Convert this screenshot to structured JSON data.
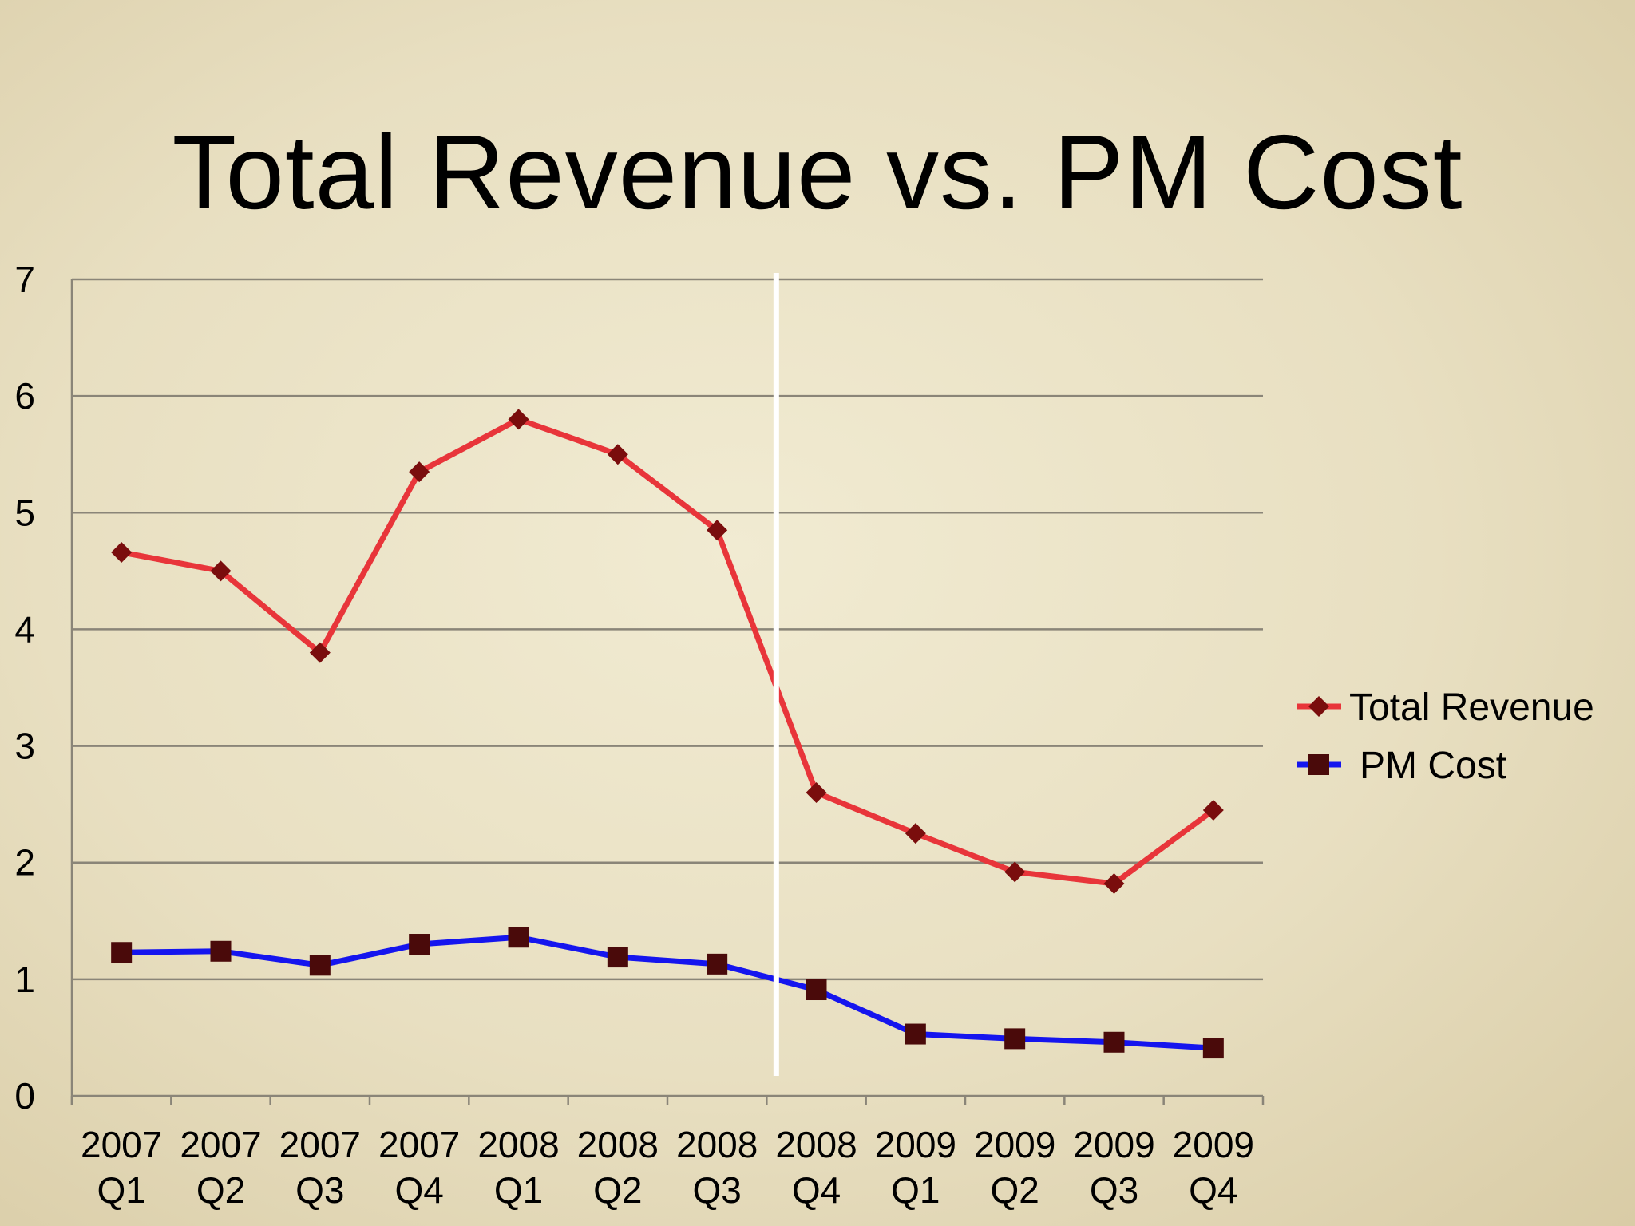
{
  "slide": {
    "title": "Total Revenue vs. PM Cost"
  },
  "chart_data": {
    "type": "line",
    "categories": [
      [
        "2007",
        "Q1"
      ],
      [
        "2007",
        "Q2"
      ],
      [
        "2007",
        "Q3"
      ],
      [
        "2007",
        "Q4"
      ],
      [
        "2008",
        "Q1"
      ],
      [
        "2008",
        "Q2"
      ],
      [
        "2008",
        "Q3"
      ],
      [
        "2008",
        "Q4"
      ],
      [
        "2009",
        "Q1"
      ],
      [
        "2009",
        "Q2"
      ],
      [
        "2009",
        "Q3"
      ],
      [
        "2009",
        "Q4"
      ]
    ],
    "series": [
      {
        "name": "Total Revenue",
        "color": "#e8353a",
        "marker": "diamond",
        "marker_color": "#7a0d0d",
        "values": [
          4.66,
          4.5,
          3.8,
          5.35,
          5.8,
          5.5,
          4.85,
          2.6,
          2.25,
          1.92,
          1.82,
          2.45
        ]
      },
      {
        "name": "PM Cost",
        "color": "#1515ee",
        "marker": "square",
        "marker_color": "#4a0a0a",
        "values": [
          1.23,
          1.24,
          1.12,
          1.3,
          1.36,
          1.19,
          1.13,
          0.91,
          0.53,
          0.49,
          0.46,
          0.41
        ]
      }
    ],
    "yticks": [
      "0",
      "1",
      "2",
      "3",
      "4",
      "5",
      "6",
      "7"
    ],
    "ylim": [
      0,
      7
    ],
    "grid": true,
    "legend": "right",
    "divider_after_category": 7
  }
}
